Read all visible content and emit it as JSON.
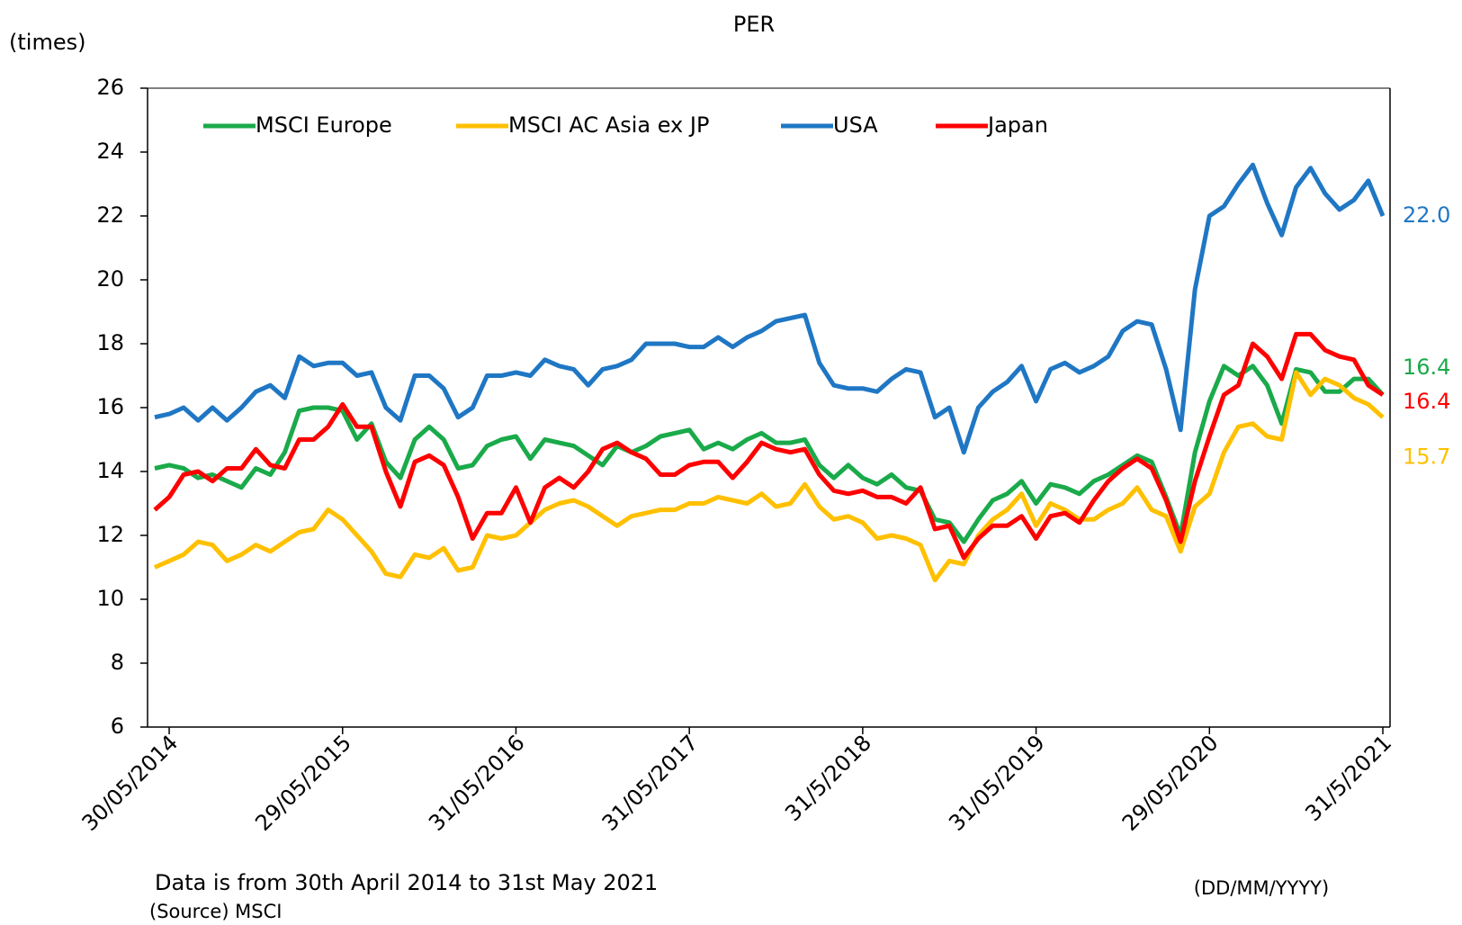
{
  "chart_data": {
    "type": "line",
    "title": "PER",
    "y_label": "(times)",
    "x_label": "(DD/MM/YYYY)",
    "note": "Data is from 30th April 2014 to 31st May 2021",
    "source": "(Source) MSCI",
    "legend": "top-left",
    "ylim": [
      6,
      26
    ],
    "yticks": [
      6,
      8,
      10,
      12,
      14,
      16,
      18,
      20,
      22,
      24,
      26
    ],
    "categories": [
      null,
      "30/05/2014",
      null,
      null,
      null,
      null,
      null,
      null,
      null,
      null,
      null,
      null,
      null,
      "29/05/2015",
      null,
      null,
      null,
      null,
      null,
      null,
      null,
      null,
      null,
      null,
      null,
      "31/05/2016",
      null,
      null,
      null,
      null,
      null,
      null,
      null,
      null,
      null,
      null,
      null,
      "31/05/2017",
      null,
      null,
      null,
      null,
      null,
      null,
      null,
      null,
      null,
      null,
      null,
      "31/5/2018",
      null,
      null,
      null,
      null,
      null,
      null,
      null,
      null,
      null,
      null,
      null,
      "31/05/2019",
      null,
      null,
      null,
      null,
      null,
      null,
      null,
      null,
      null,
      null,
      null,
      "29/05/2020",
      null,
      null,
      null,
      null,
      null,
      null,
      null,
      null,
      null,
      null,
      null,
      "31/5/2021"
    ],
    "series": [
      {
        "name": "MSCI Europe",
        "color": "#1aaa4a",
        "values": [
          14.1,
          14.2,
          14.1,
          13.8,
          13.9,
          13.7,
          13.5,
          14.1,
          13.9,
          14.6,
          15.9,
          16.0,
          16.0,
          15.9,
          15.0,
          15.5,
          14.3,
          13.8,
          15.0,
          15.4,
          15.0,
          14.1,
          14.2,
          14.8,
          15.0,
          15.1,
          14.4,
          15.0,
          14.9,
          14.8,
          14.5,
          14.2,
          14.8,
          14.6,
          14.8,
          15.1,
          15.2,
          15.3,
          14.7,
          14.9,
          14.7,
          15.0,
          15.2,
          14.9,
          14.9,
          15.0,
          14.2,
          13.8,
          14.2,
          13.8,
          13.6,
          13.9,
          13.5,
          13.4,
          12.5,
          12.4,
          11.8,
          12.5,
          13.1,
          13.3,
          13.7,
          13.0,
          13.6,
          13.5,
          13.3,
          13.7,
          13.9,
          14.2,
          14.5,
          14.3,
          13.2,
          12.0,
          14.6,
          16.2,
          17.3,
          17.0,
          17.3,
          16.7,
          15.5,
          17.2,
          17.1,
          16.5,
          16.5,
          16.9,
          16.9,
          16.4
        ]
      },
      {
        "name": "MSCI AC Asia ex JP",
        "color": "#ffc000",
        "values": [
          11.0,
          11.2,
          11.4,
          11.8,
          11.7,
          11.2,
          11.4,
          11.7,
          11.5,
          11.8,
          12.1,
          12.2,
          12.8,
          12.5,
          12.0,
          11.5,
          10.8,
          10.7,
          11.4,
          11.3,
          11.6,
          10.9,
          11.0,
          12.0,
          11.9,
          12.0,
          12.4,
          12.8,
          13.0,
          13.1,
          12.9,
          12.6,
          12.3,
          12.6,
          12.7,
          12.8,
          12.8,
          13.0,
          13.0,
          13.2,
          13.1,
          13.0,
          13.3,
          12.9,
          13.0,
          13.6,
          12.9,
          12.5,
          12.6,
          12.4,
          11.9,
          12.0,
          11.9,
          11.7,
          10.6,
          11.2,
          11.1,
          12.0,
          12.5,
          12.8,
          13.3,
          12.3,
          13.0,
          12.8,
          12.5,
          12.5,
          12.8,
          13.0,
          13.5,
          12.8,
          12.6,
          11.5,
          12.9,
          13.3,
          14.6,
          15.4,
          15.5,
          15.1,
          15.0,
          17.1,
          16.4,
          16.9,
          16.7,
          16.3,
          16.1,
          15.7
        ]
      },
      {
        "name": "USA",
        "color": "#1f77c4",
        "values": [
          15.7,
          15.8,
          16.0,
          15.6,
          16.0,
          15.6,
          16.0,
          16.5,
          16.7,
          16.3,
          17.6,
          17.3,
          17.4,
          17.4,
          17.0,
          17.1,
          16.0,
          15.6,
          17.0,
          17.0,
          16.6,
          15.7,
          16.0,
          17.0,
          17.0,
          17.1,
          17.0,
          17.5,
          17.3,
          17.2,
          16.7,
          17.2,
          17.3,
          17.5,
          18.0,
          18.0,
          18.0,
          17.9,
          17.9,
          18.2,
          17.9,
          18.2,
          18.4,
          18.7,
          18.8,
          18.9,
          17.4,
          16.7,
          16.6,
          16.6,
          16.5,
          16.9,
          17.2,
          17.1,
          15.7,
          16.0,
          14.6,
          16.0,
          16.5,
          16.8,
          17.3,
          16.2,
          17.2,
          17.4,
          17.1,
          17.3,
          17.6,
          18.4,
          18.7,
          18.6,
          17.2,
          15.3,
          19.7,
          22.0,
          22.3,
          23.0,
          23.6,
          22.4,
          21.4,
          22.9,
          23.5,
          22.7,
          22.2,
          22.5,
          23.1,
          22.0
        ],
        "value_labels": [
          null,
          null,
          null,
          null,
          null,
          null,
          null,
          null,
          null,
          null,
          null,
          null,
          null,
          null,
          null,
          null,
          null,
          null,
          null,
          null,
          null,
          null,
          null,
          null,
          null,
          null,
          null,
          null,
          null,
          null,
          null,
          null,
          null,
          null,
          null,
          null,
          null,
          null,
          null,
          null,
          null,
          null,
          null,
          null,
          null,
          null,
          null,
          null,
          null,
          null,
          null,
          null,
          null,
          null,
          null,
          null,
          null,
          null,
          null,
          null,
          null,
          null,
          null,
          null,
          null,
          null,
          null,
          null,
          null,
          null,
          null,
          null,
          null,
          null,
          null,
          null,
          null,
          null,
          null,
          null,
          null,
          null,
          null,
          null,
          null,
          "22.0"
        ]
      },
      {
        "name": "Japan",
        "color": "#ff0000",
        "values": [
          12.8,
          13.2,
          13.9,
          14.0,
          13.7,
          14.1,
          14.1,
          14.7,
          14.2,
          14.1,
          15.0,
          15.0,
          15.4,
          16.1,
          15.4,
          15.4,
          14.0,
          12.9,
          14.3,
          14.5,
          14.2,
          13.2,
          11.9,
          12.7,
          12.7,
          13.5,
          12.4,
          13.5,
          13.8,
          13.5,
          14.0,
          14.7,
          14.9,
          14.6,
          14.4,
          13.9,
          13.9,
          14.2,
          14.3,
          14.3,
          13.8,
          14.3,
          14.9,
          14.7,
          14.6,
          14.7,
          13.9,
          13.4,
          13.3,
          13.4,
          13.2,
          13.2,
          13.0,
          13.5,
          12.2,
          12.3,
          11.3,
          11.9,
          12.3,
          12.3,
          12.6,
          11.9,
          12.6,
          12.7,
          12.4,
          13.1,
          13.7,
          14.1,
          14.4,
          14.1,
          13.1,
          11.8,
          13.7,
          15.1,
          16.4,
          16.7,
          18.0,
          17.6,
          16.9,
          18.3,
          18.3,
          17.8,
          17.6,
          17.5,
          16.7,
          16.4
        ]
      }
    ]
  }
}
